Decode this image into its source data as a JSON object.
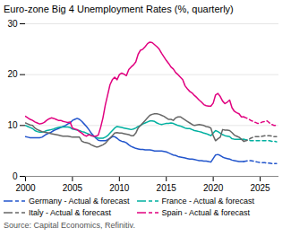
{
  "chart_data": {
    "type": "line",
    "title": "Euro-zone Big 4 Unemployment Rates (%, quarterly)",
    "annotations": [
      "Source: Capital Economics, Refinitiv."
    ],
    "xlim": [
      2000,
      2027
    ],
    "xticks": [
      2000,
      2005,
      2010,
      2015,
      2020,
      2025
    ],
    "ylim": [
      0,
      30
    ],
    "yticks": [
      0,
      10,
      20,
      30
    ],
    "grid": true,
    "x": [
      2000,
      2000.25,
      2000.5,
      2000.75,
      2001,
      2001.25,
      2001.5,
      2001.75,
      2002,
      2002.25,
      2002.5,
      2002.75,
      2003,
      2003.25,
      2003.5,
      2003.75,
      2004,
      2004.25,
      2004.5,
      2004.75,
      2005,
      2005.25,
      2005.5,
      2005.75,
      2006,
      2006.25,
      2006.5,
      2006.75,
      2007,
      2007.25,
      2007.5,
      2007.75,
      2008,
      2008.25,
      2008.5,
      2008.75,
      2009,
      2009.25,
      2009.5,
      2009.75,
      2010,
      2010.25,
      2010.5,
      2010.75,
      2011,
      2011.25,
      2011.5,
      2011.75,
      2012,
      2012.25,
      2012.5,
      2012.75,
      2013,
      2013.25,
      2013.5,
      2013.75,
      2014,
      2014.25,
      2014.5,
      2014.75,
      2015,
      2015.25,
      2015.5,
      2015.75,
      2016,
      2016.25,
      2016.5,
      2016.75,
      2017,
      2017.25,
      2017.5,
      2017.75,
      2018,
      2018.25,
      2018.5,
      2018.75,
      2019,
      2019.25,
      2019.5,
      2019.75,
      2020,
      2020.25,
      2020.5,
      2020.75,
      2021,
      2021.25,
      2021.5,
      2021.75,
      2022,
      2022.25,
      2022.5,
      2022.75,
      2023,
      2023.25
    ],
    "forecast_x": [
      2023.25,
      2023.5,
      2023.75,
      2024,
      2024.25,
      2024.5,
      2024.75,
      2025,
      2025.25,
      2025.5,
      2025.75,
      2026,
      2026.25,
      2026.5,
      2026.75
    ],
    "series": [
      {
        "name": "Germany - Actual & forecast",
        "color": "#2255cc",
        "line_style": "solid",
        "values": [
          7.8,
          7.7,
          7.6,
          7.6,
          7.6,
          7.6,
          7.6,
          7.7,
          8.0,
          8.3,
          8.5,
          8.7,
          9.0,
          9.2,
          9.4,
          9.6,
          9.8,
          10.0,
          10.3,
          10.5,
          11.0,
          11.2,
          11.4,
          11.2,
          10.8,
          10.3,
          9.8,
          9.2,
          8.5,
          8.0,
          7.5,
          7.1,
          7.0,
          7.0,
          7.0,
          7.2,
          7.5,
          7.8,
          7.8,
          7.5,
          7.1,
          6.9,
          6.8,
          6.6,
          6.2,
          5.9,
          5.7,
          5.5,
          5.4,
          5.3,
          5.3,
          5.2,
          5.2,
          5.2,
          5.1,
          5.0,
          5.0,
          5.0,
          5.0,
          4.9,
          4.8,
          4.6,
          4.4,
          4.2,
          4.1,
          3.9,
          3.8,
          3.7,
          3.6,
          3.5,
          3.4,
          3.4,
          3.3,
          3.2,
          3.1,
          3.1,
          3.0,
          3.0,
          2.9,
          2.8,
          3.5,
          4.2,
          4.3,
          4.1,
          3.8,
          3.6,
          3.5,
          3.4,
          3.2,
          3.1,
          3.0,
          2.9,
          2.9,
          2.9
        ],
        "forecast_values": [
          2.9,
          3.0,
          3.1,
          3.1,
          3.0,
          2.9,
          2.8,
          2.7,
          2.7,
          2.7,
          2.6,
          2.6,
          2.5,
          2.5,
          2.5
        ]
      },
      {
        "name": "France - Actual & forecast",
        "color": "#00b0a0",
        "line_style": "solid",
        "values": [
          10.0,
          9.8,
          9.6,
          9.4,
          9.0,
          8.8,
          8.7,
          8.7,
          8.8,
          9.0,
          9.1,
          9.2,
          9.3,
          9.5,
          9.6,
          9.7,
          9.7,
          9.7,
          9.7,
          9.6,
          9.3,
          9.2,
          9.1,
          9.0,
          8.8,
          8.7,
          8.5,
          8.3,
          8.1,
          7.9,
          7.7,
          7.5,
          7.5,
          7.5,
          7.7,
          8.0,
          8.5,
          9.0,
          9.5,
          9.8,
          9.7,
          9.6,
          9.5,
          9.4,
          9.3,
          9.2,
          9.3,
          9.5,
          9.8,
          10.0,
          10.3,
          10.5,
          10.7,
          10.9,
          10.9,
          10.8,
          10.5,
          10.3,
          10.2,
          10.3,
          10.4,
          10.4,
          10.5,
          10.4,
          10.2,
          10.0,
          9.9,
          9.7,
          9.5,
          9.4,
          9.4,
          9.2,
          9.0,
          8.9,
          8.8,
          8.7,
          8.5,
          8.4,
          8.2,
          8.0,
          8.5,
          9.0,
          8.8,
          8.5,
          8.2,
          8.0,
          7.9,
          7.8,
          7.4,
          7.3,
          7.3,
          7.3,
          7.3,
          7.3
        ],
        "forecast_values": [
          7.3,
          7.2,
          7.1,
          7.0,
          7.0,
          7.0,
          7.0,
          7.0,
          7.0,
          7.0,
          7.0,
          7.0,
          6.9,
          6.9,
          6.8
        ]
      },
      {
        "name": "Italy - Actual & forecast",
        "color": "#666666",
        "line_style": "solid",
        "values": [
          10.5,
          10.3,
          10.1,
          10.0,
          9.5,
          9.2,
          9.0,
          8.8,
          8.7,
          8.6,
          8.5,
          8.4,
          8.3,
          8.2,
          8.1,
          8.0,
          7.9,
          7.9,
          7.9,
          7.8,
          7.7,
          7.7,
          7.7,
          7.7,
          6.9,
          6.7,
          6.6,
          6.5,
          6.2,
          6.0,
          5.8,
          5.8,
          6.0,
          6.2,
          6.5,
          7.0,
          7.5,
          8.0,
          8.5,
          8.6,
          8.5,
          8.5,
          8.4,
          8.3,
          8.2,
          8.0,
          8.0,
          8.5,
          9.5,
          10.0,
          10.5,
          11.0,
          11.5,
          12.0,
          12.2,
          12.3,
          12.3,
          12.2,
          12.0,
          11.8,
          11.5,
          11.2,
          11.2,
          11.0,
          11.5,
          11.7,
          11.7,
          11.4,
          11.1,
          10.8,
          10.5,
          10.2,
          10.0,
          10.1,
          10.2,
          10.1,
          10.0,
          9.8,
          9.7,
          9.5,
          8.0,
          7.0,
          7.4,
          7.7,
          9.2,
          9.1,
          9.1,
          9.0,
          8.6,
          8.1,
          7.9,
          7.7,
          7.3,
          6.9
        ],
        "forecast_values": [
          6.9,
          7.0,
          7.2,
          7.5,
          7.7,
          7.8,
          7.8,
          7.8,
          7.9,
          8.0,
          8.0,
          8.0,
          7.9,
          7.8,
          7.8
        ]
      },
      {
        "name": "Spain - Actual & forecast",
        "color": "#e0007f",
        "line_style": "solid",
        "values": [
          11.8,
          11.5,
          11.2,
          11.0,
          10.7,
          10.5,
          10.3,
          10.4,
          10.6,
          11.0,
          11.3,
          11.5,
          11.4,
          11.2,
          11.0,
          11.0,
          10.8,
          10.7,
          10.6,
          10.7,
          9.5,
          9.3,
          9.2,
          8.8,
          8.5,
          8.1,
          7.9,
          8.2,
          8.0,
          7.9,
          7.9,
          8.1,
          9.6,
          11.5,
          14.0,
          16.0,
          18.0,
          19.0,
          19.5,
          19.0,
          20.0,
          20.3,
          20.1,
          19.8,
          21.0,
          21.5,
          21.9,
          22.5,
          24.0,
          24.8,
          25.0,
          25.5,
          26.1,
          26.4,
          26.3,
          25.9,
          25.5,
          25.0,
          24.2,
          23.5,
          22.8,
          22.2,
          21.5,
          21.1,
          20.4,
          20.0,
          19.5,
          19.0,
          17.8,
          17.2,
          16.7,
          16.4,
          15.9,
          15.5,
          15.0,
          14.6,
          14.1,
          13.9,
          13.8,
          13.8,
          14.4,
          16.0,
          16.3,
          15.7,
          14.8,
          14.3,
          14.6,
          15.0,
          13.5,
          12.8,
          12.5,
          12.3,
          11.7,
          11.7
        ],
        "forecast_values": [
          11.7,
          11.5,
          11.3,
          11.0,
          10.8,
          10.6,
          10.4,
          10.5,
          10.7,
          10.8,
          10.9,
          10.5,
          10.2,
          10.0,
          10.0
        ]
      }
    ]
  }
}
